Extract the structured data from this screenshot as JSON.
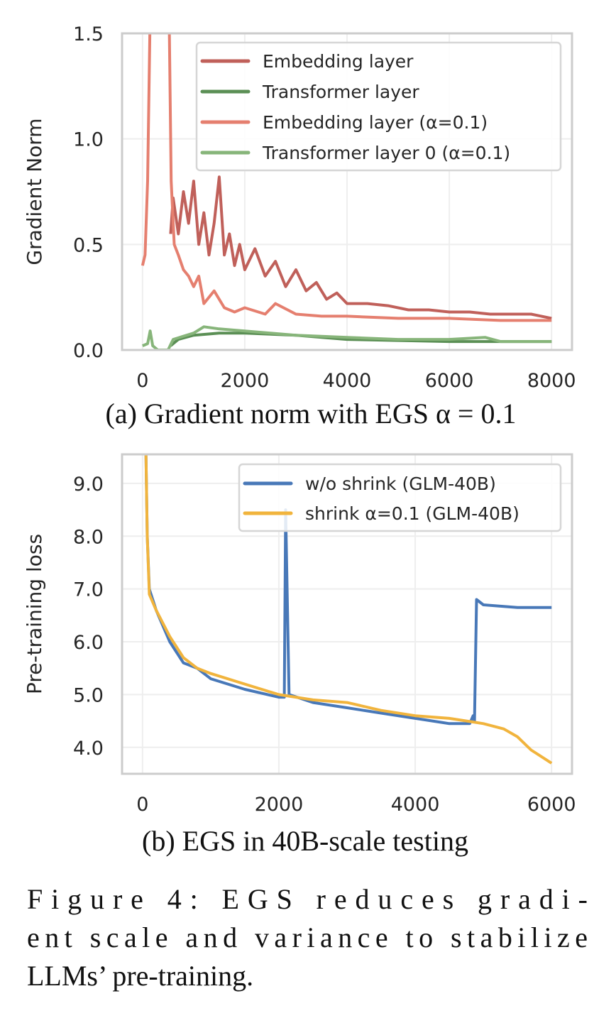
{
  "chart_data": [
    {
      "type": "line",
      "subcaption": "(a) Gradient norm with EGS α = 0.1",
      "xlabel": "",
      "ylabel": "Gradient Norm",
      "xlim": [
        -400,
        8400
      ],
      "ylim": [
        0,
        1.5
      ],
      "xticks": [
        "0",
        "2000",
        "4000",
        "6000",
        "8000"
      ],
      "xtick_values": [
        0,
        2000,
        4000,
        6000,
        8000
      ],
      "yticks": [
        "0.0",
        "0.5",
        "1.0",
        "1.5"
      ],
      "ytick_values": [
        0,
        0.5,
        1.0,
        1.5
      ],
      "grid": true,
      "legend_position": "top-right",
      "series": [
        {
          "name": "Embedding layer",
          "color": "#c0605a",
          "points": [
            [
              550,
              0.55
            ],
            [
              600,
              0.72
            ],
            [
              700,
              0.55
            ],
            [
              800,
              0.75
            ],
            [
              900,
              0.6
            ],
            [
              1000,
              0.8
            ],
            [
              1100,
              0.5
            ],
            [
              1200,
              0.65
            ],
            [
              1300,
              0.45
            ],
            [
              1400,
              0.6
            ],
            [
              1500,
              0.82
            ],
            [
              1600,
              0.45
            ],
            [
              1700,
              0.55
            ],
            [
              1800,
              0.4
            ],
            [
              1900,
              0.5
            ],
            [
              2000,
              0.38
            ],
            [
              2200,
              0.48
            ],
            [
              2400,
              0.35
            ],
            [
              2600,
              0.42
            ],
            [
              2800,
              0.3
            ],
            [
              3000,
              0.38
            ],
            [
              3200,
              0.28
            ],
            [
              3400,
              0.32
            ],
            [
              3600,
              0.24
            ],
            [
              3800,
              0.27
            ],
            [
              4000,
              0.22
            ],
            [
              4400,
              0.22
            ],
            [
              4800,
              0.21
            ],
            [
              5200,
              0.19
            ],
            [
              5600,
              0.19
            ],
            [
              6000,
              0.18
            ],
            [
              6400,
              0.18
            ],
            [
              6800,
              0.17
            ],
            [
              7200,
              0.17
            ],
            [
              7600,
              0.17
            ],
            [
              8000,
              0.15
            ]
          ]
        },
        {
          "name": "Transformer layer",
          "color": "#5b8f55",
          "points": [
            [
              550,
              0.02
            ],
            [
              700,
              0.05
            ],
            [
              1000,
              0.07
            ],
            [
              1500,
              0.08
            ],
            [
              2000,
              0.08
            ],
            [
              3000,
              0.07
            ],
            [
              4000,
              0.05
            ],
            [
              6000,
              0.04
            ],
            [
              8000,
              0.04
            ]
          ]
        },
        {
          "name": "Embedding layer (α=0.1)",
          "color": "#e57f6f",
          "points": [
            [
              0,
              0.4
            ],
            [
              50,
              0.45
            ],
            [
              100,
              0.8
            ],
            [
              150,
              1.6
            ],
            [
              180,
              2.5
            ],
            [
              480,
              2.5
            ],
            [
              520,
              1.6
            ],
            [
              560,
              0.8
            ],
            [
              620,
              0.5
            ],
            [
              700,
              0.45
            ],
            [
              800,
              0.38
            ],
            [
              900,
              0.35
            ],
            [
              1000,
              0.3
            ],
            [
              1100,
              0.35
            ],
            [
              1200,
              0.22
            ],
            [
              1400,
              0.28
            ],
            [
              1600,
              0.2
            ],
            [
              1800,
              0.18
            ],
            [
              2000,
              0.2
            ],
            [
              2400,
              0.17
            ],
            [
              2600,
              0.22
            ],
            [
              3000,
              0.17
            ],
            [
              3500,
              0.16
            ],
            [
              4000,
              0.16
            ],
            [
              5000,
              0.15
            ],
            [
              6000,
              0.15
            ],
            [
              7000,
              0.14
            ],
            [
              8000,
              0.14
            ]
          ]
        },
        {
          "name": "Transformer layer 0 (α=0.1)",
          "color": "#87b57a",
          "points": [
            [
              0,
              0.02
            ],
            [
              100,
              0.03
            ],
            [
              150,
              0.09
            ],
            [
              200,
              0.02
            ],
            [
              300,
              0.0
            ],
            [
              500,
              0.0
            ],
            [
              600,
              0.05
            ],
            [
              1000,
              0.08
            ],
            [
              1200,
              0.11
            ],
            [
              1500,
              0.1
            ],
            [
              2000,
              0.09
            ],
            [
              2500,
              0.08
            ],
            [
              3000,
              0.07
            ],
            [
              4000,
              0.06
            ],
            [
              5000,
              0.05
            ],
            [
              6000,
              0.05
            ],
            [
              6700,
              0.06
            ],
            [
              7000,
              0.04
            ],
            [
              8000,
              0.04
            ]
          ]
        }
      ]
    },
    {
      "type": "line",
      "subcaption": "(b) EGS in 40B-scale testing",
      "xlabel": "",
      "ylabel": "Pre-training loss",
      "xlim": [
        -300,
        6300
      ],
      "ylim": [
        3.5,
        9.55
      ],
      "xticks": [
        "0",
        "2000",
        "4000",
        "6000"
      ],
      "xtick_values": [
        0,
        2000,
        4000,
        6000
      ],
      "yticks": [
        "4.0",
        "5.0",
        "6.0",
        "7.0",
        "8.0",
        "9.0"
      ],
      "ytick_values": [
        4,
        5,
        6,
        7,
        8,
        9
      ],
      "grid": true,
      "legend_position": "top-right",
      "series": [
        {
          "name": "w/o shrink (GLM-40B)",
          "color": "#4878b8",
          "points": [
            [
              50,
              9.6
            ],
            [
              70,
              8
            ],
            [
              100,
              7
            ],
            [
              200,
              6.6
            ],
            [
              400,
              6.0
            ],
            [
              600,
              5.6
            ],
            [
              800,
              5.5
            ],
            [
              1000,
              5.3
            ],
            [
              1500,
              5.1
            ],
            [
              2000,
              4.95
            ],
            [
              2080,
              4.95
            ],
            [
              2100,
              8.5
            ],
            [
              2150,
              5.0
            ],
            [
              2500,
              4.85
            ],
            [
              3000,
              4.75
            ],
            [
              3500,
              4.65
            ],
            [
              4000,
              4.55
            ],
            [
              4500,
              4.45
            ],
            [
              4800,
              4.45
            ],
            [
              4850,
              4.6
            ],
            [
              4870,
              4.5
            ],
            [
              4900,
              6.8
            ],
            [
              5000,
              6.7
            ],
            [
              5500,
              6.65
            ],
            [
              6000,
              6.65
            ]
          ]
        },
        {
          "name": "shrink α=0.1 (GLM-40B)",
          "color": "#f1b43d",
          "points": [
            [
              50,
              9.6
            ],
            [
              70,
              8
            ],
            [
              100,
              6.9
            ],
            [
              200,
              6.6
            ],
            [
              400,
              6.1
            ],
            [
              600,
              5.7
            ],
            [
              800,
              5.5
            ],
            [
              1000,
              5.4
            ],
            [
              1500,
              5.2
            ],
            [
              2000,
              5.0
            ],
            [
              2500,
              4.9
            ],
            [
              3000,
              4.85
            ],
            [
              3500,
              4.7
            ],
            [
              4000,
              4.6
            ],
            [
              4500,
              4.55
            ],
            [
              5000,
              4.45
            ],
            [
              5300,
              4.35
            ],
            [
              5500,
              4.2
            ],
            [
              5700,
              3.95
            ],
            [
              6000,
              3.7
            ]
          ]
        }
      ]
    }
  ],
  "figure_caption": {
    "lines": [
      "Figure 4:  EGS reduces gradi-",
      "ent scale and variance to stabilize",
      "LLMs’ pre-training."
    ]
  }
}
